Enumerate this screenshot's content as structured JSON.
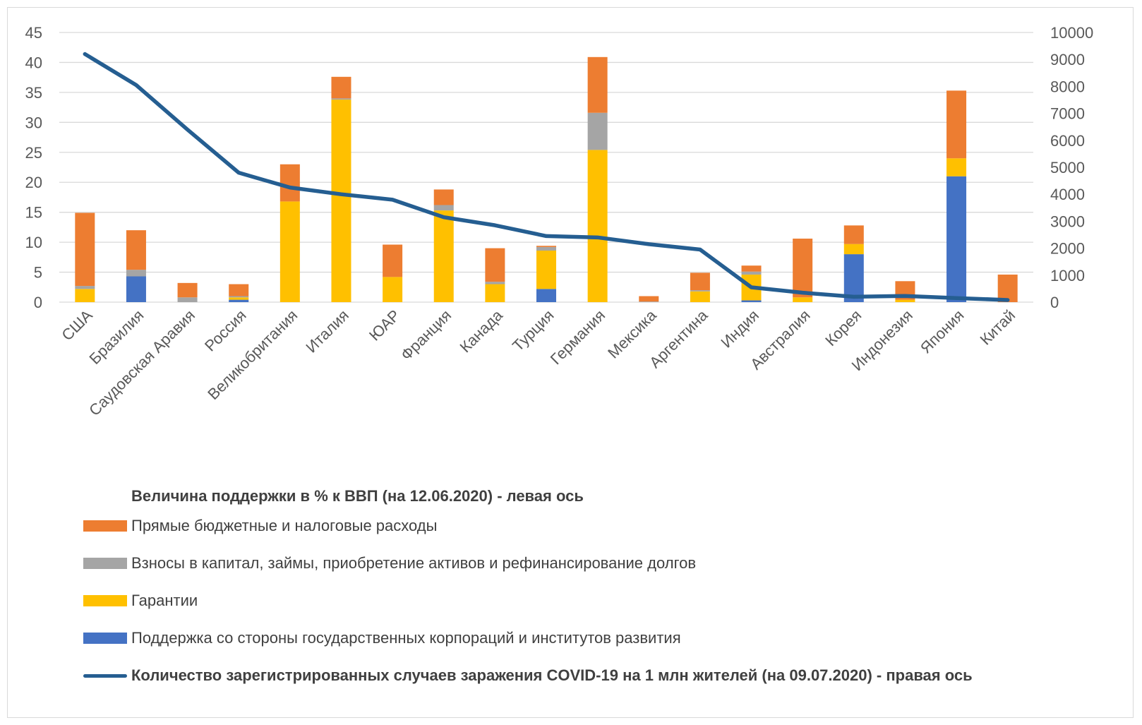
{
  "colors": {
    "direct": "#ED7D31",
    "capital": "#A5A5A5",
    "guarantees": "#FFC000",
    "corporations": "#4472C4",
    "cases": "#255E91",
    "grid": "#d9d9d9",
    "axis_text": "#595959"
  },
  "legend": {
    "title": "Величина поддержки в % к ВВП (на 12.06.2020) - левая ось",
    "items": [
      {
        "label": "Прямые бюджетные и налоговые расходы",
        "key": "direct",
        "kind": "box"
      },
      {
        "label": "Взносы в капитал, займы, приобретение активов и рефинансирование долгов",
        "key": "capital",
        "kind": "box"
      },
      {
        "label": "Гарантии",
        "key": "guarantees",
        "kind": "box"
      },
      {
        "label": "Поддержка со стороны государственных корпораций и институтов развития",
        "key": "corporations",
        "kind": "box"
      },
      {
        "label": "Количество зарегистрированных случаев заражения COVID-19 на 1 млн жителей (на 09.07.2020) - правая ось",
        "key": "cases",
        "kind": "line"
      }
    ]
  },
  "chart_data": {
    "type": "bar",
    "stacked": true,
    "categories": [
      "США",
      "Бразилия",
      "Саудовская Аравия",
      "Россия",
      "Великобритания",
      "Италия",
      "ЮАР",
      "Франция",
      "Канада",
      "Турция",
      "Германия",
      "Мексика",
      "Аргентина",
      "Индия",
      "Австралия",
      "Корея",
      "Индонезия",
      "Япония",
      "Китай"
    ],
    "series": [
      {
        "name": "Поддержка со стороны государственных корпораций и институтов развития",
        "key": "corporations",
        "axis": "left",
        "values": [
          0,
          4.3,
          0,
          0.4,
          0,
          0,
          0,
          0,
          0,
          2.2,
          0,
          0,
          0,
          0.3,
          0,
          8.0,
          0,
          21.0,
          0
        ]
      },
      {
        "name": "Гарантии",
        "key": "guarantees",
        "axis": "left",
        "values": [
          2.2,
          0,
          0,
          0.4,
          16.8,
          33.8,
          4.2,
          15.3,
          3.0,
          6.4,
          25.4,
          0,
          1.8,
          4.3,
          0.8,
          1.7,
          0.4,
          3.0,
          0
        ]
      },
      {
        "name": "Взносы в капитал, займы, приобретение активов и рефинансирование долгов",
        "key": "capital",
        "axis": "left",
        "values": [
          0.5,
          1.1,
          0.8,
          0.2,
          0,
          0.2,
          0,
          0.9,
          0.4,
          0.6,
          6.2,
          0.1,
          0.2,
          0.5,
          0,
          0,
          0,
          0,
          0
        ]
      },
      {
        "name": "Прямые бюджетные и налоговые расходы",
        "key": "direct",
        "axis": "left",
        "values": [
          12.2,
          6.6,
          2.4,
          2.0,
          6.2,
          3.6,
          5.4,
          2.6,
          5.6,
          0.2,
          9.3,
          0.9,
          2.9,
          1.0,
          9.8,
          3.1,
          3.1,
          11.3,
          4.6
        ]
      },
      {
        "name": "Количество зарегистрированных случаев заражения COVID-19 на 1 млн жителей (на 09.07.2020) - правая ось",
        "key": "cases",
        "axis": "right",
        "type": "line",
        "values": [
          9200,
          8050,
          6400,
          4800,
          4250,
          4000,
          3800,
          3150,
          2850,
          2450,
          2400,
          2150,
          1950,
          550,
          350,
          200,
          230,
          150,
          80
        ]
      }
    ],
    "y_left": {
      "min": 0,
      "max": 45,
      "ticks": [
        0,
        5,
        10,
        15,
        20,
        25,
        30,
        35,
        40,
        45
      ]
    },
    "y_right": {
      "min": 0,
      "max": 10000,
      "ticks": [
        0,
        1000,
        2000,
        3000,
        4000,
        5000,
        6000,
        7000,
        8000,
        9000,
        10000
      ]
    },
    "grid": true,
    "legend_position": "bottom"
  }
}
